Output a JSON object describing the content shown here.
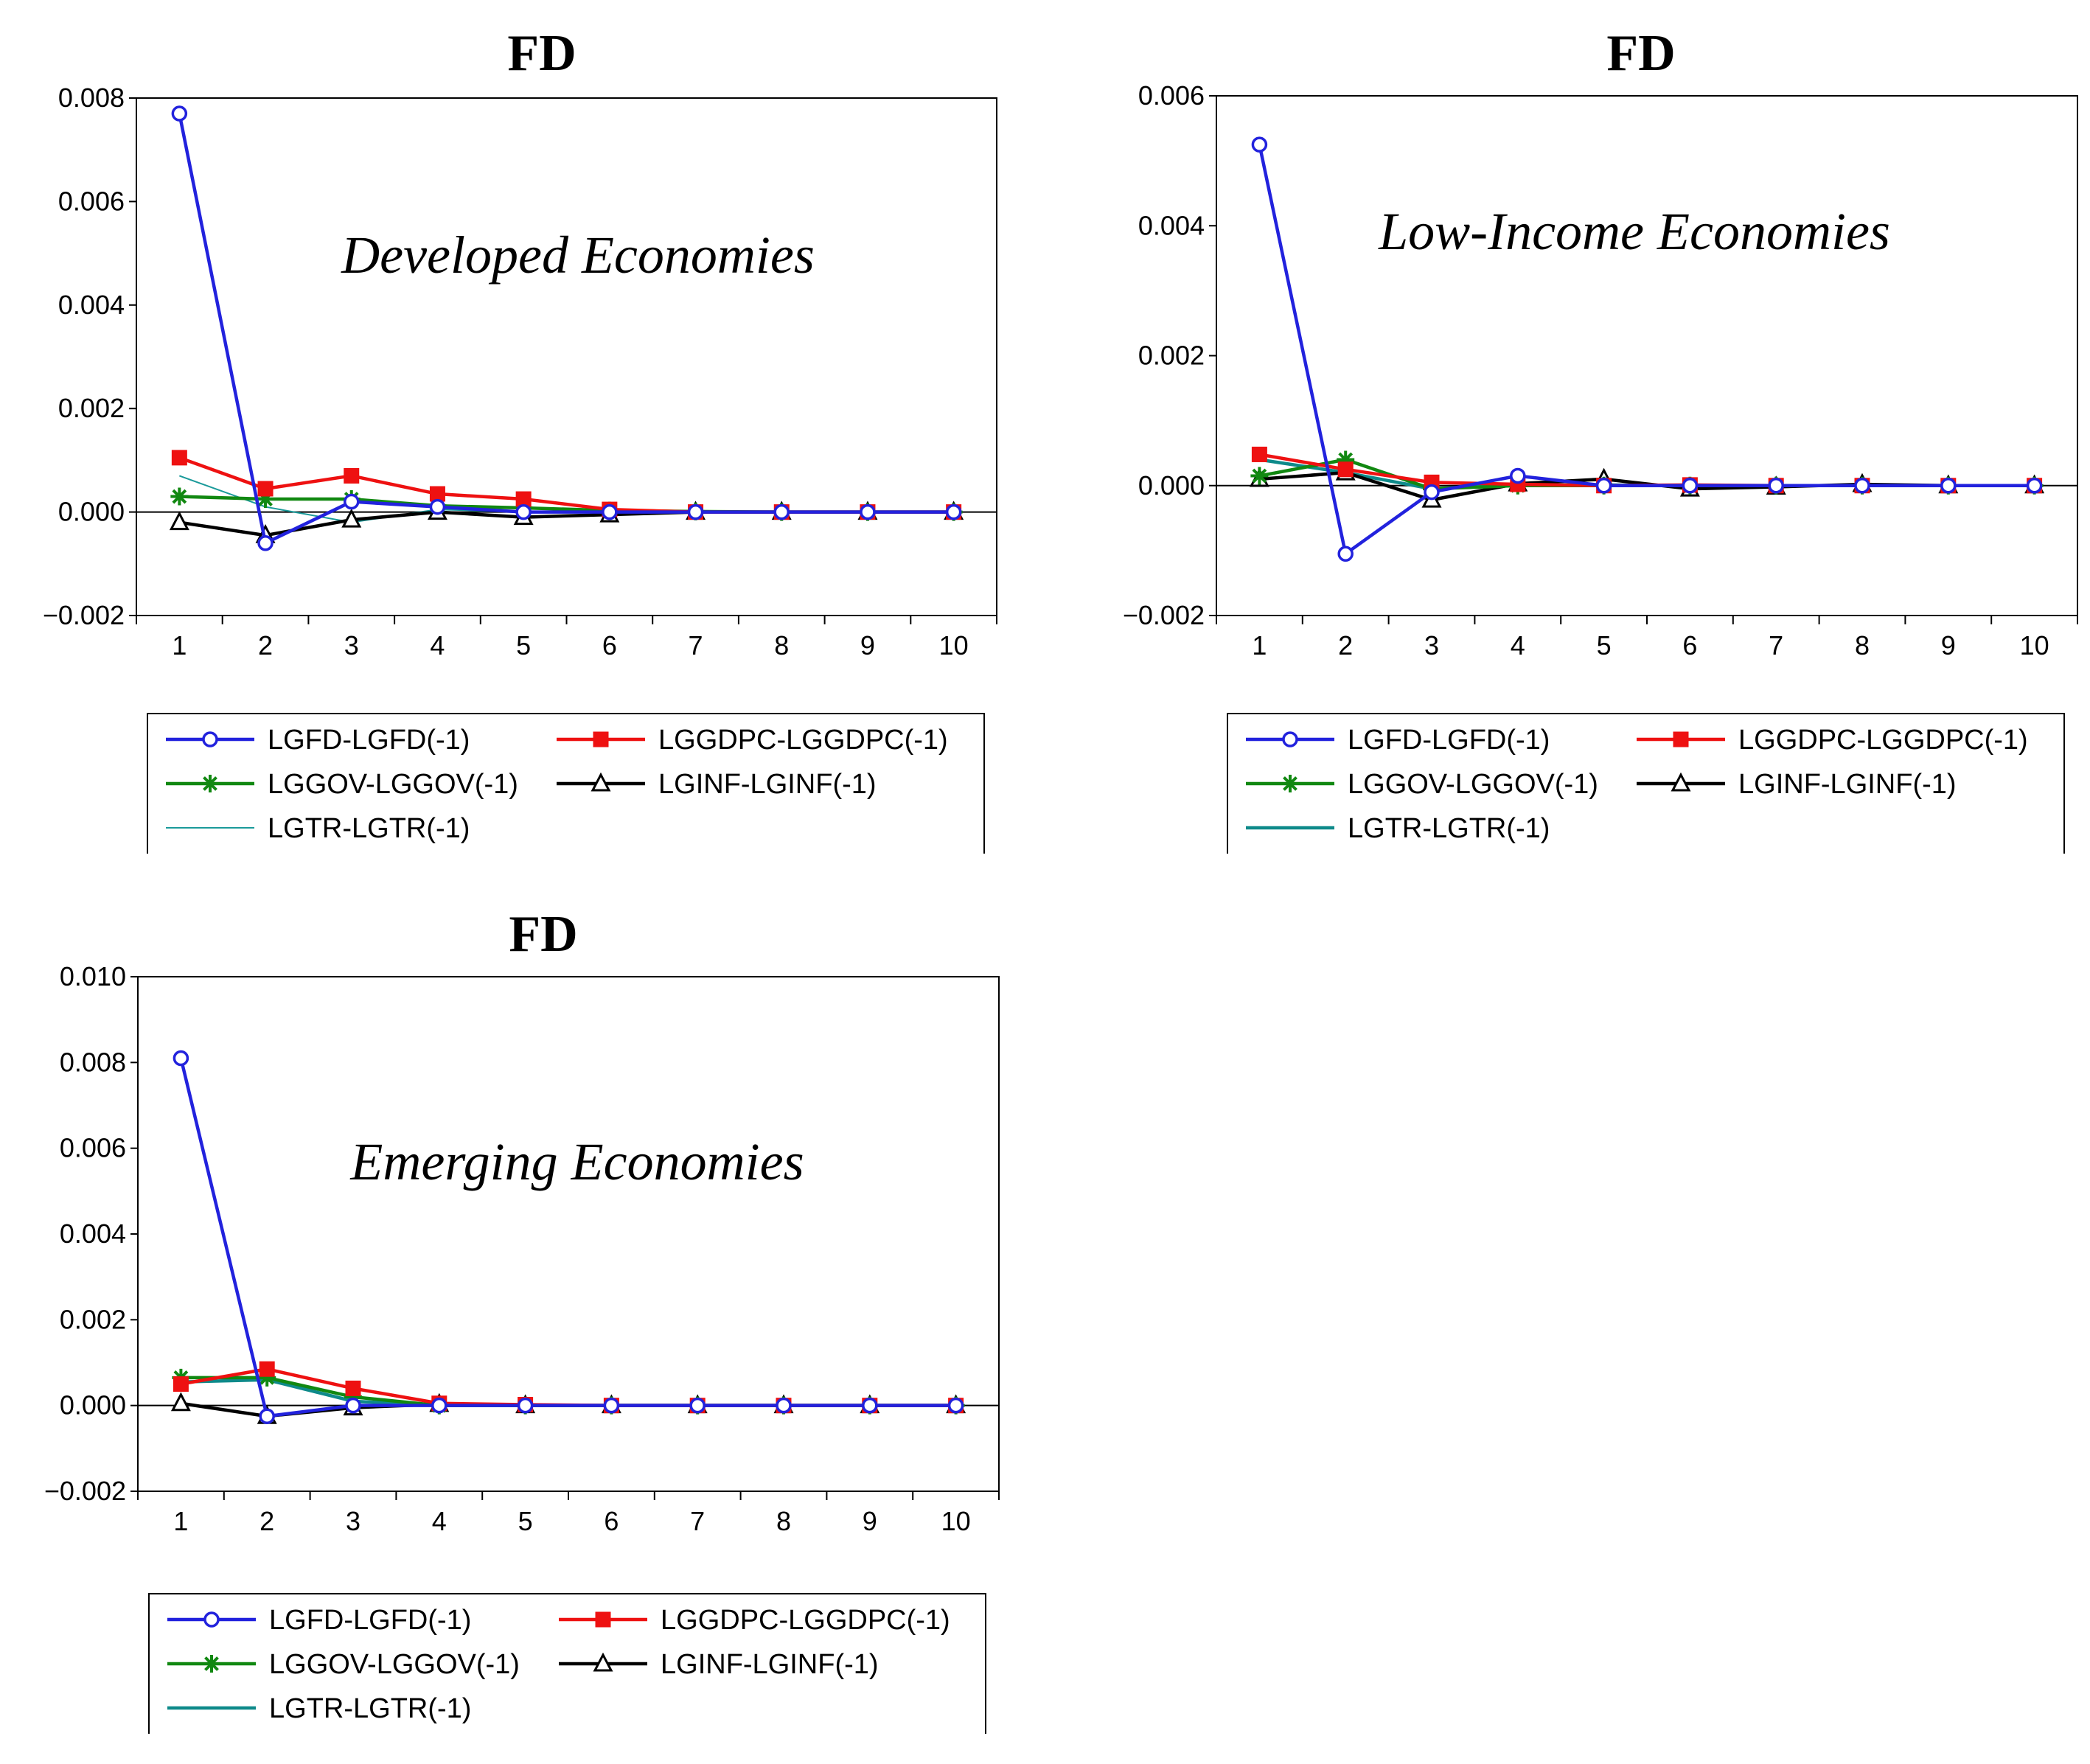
{
  "chart_data": [
    {
      "type": "line",
      "title": "FD",
      "annotation": "Developed Economies",
      "x": [
        1,
        2,
        3,
        4,
        5,
        6,
        7,
        8,
        9,
        10
      ],
      "ylim": [
        -0.002,
        0.008
      ],
      "yticks": [
        "0.008",
        "0.006",
        "0.004",
        "0.002",
        "0.000",
        "−0.002"
      ],
      "ytick_values": [
        0.008,
        0.006,
        0.004,
        0.002,
        0.0,
        -0.002
      ],
      "xticks": [
        "1",
        "2",
        "3",
        "4",
        "5",
        "6",
        "7",
        "8",
        "9",
        "10"
      ],
      "grid": false,
      "legend_position": "bottom",
      "series": [
        {
          "name": "LGFD-LGFD(-1)",
          "color": "#2222dd",
          "marker": "circle",
          "values": [
            0.0077,
            -0.0006,
            0.0002,
            0.0001,
            0.0,
            0.0,
            0.0,
            0.0,
            0.0,
            0.0
          ]
        },
        {
          "name": "LGGDPC-LGGDPC(-1)",
          "color": "#ee1111",
          "marker": "square",
          "values": [
            0.00105,
            0.00045,
            0.0007,
            0.00035,
            0.00025,
            5e-05,
            0.0,
            0.0,
            0.0,
            0.0
          ]
        },
        {
          "name": "LGGOV-LGGOV(-1)",
          "color": "#118811",
          "marker": "star",
          "values": [
            0.0003,
            0.00025,
            0.00025,
            0.00012,
            8e-05,
            3e-05,
            1e-05,
            0.0,
            0.0,
            0.0
          ]
        },
        {
          "name": "LGINF-LGINF(-1)",
          "color": "#000000",
          "marker": "triangle",
          "values": [
            -0.0002,
            -0.00045,
            -0.00015,
            0.0,
            -0.0001,
            -5e-05,
            0.0,
            0.0,
            0.0,
            0.0
          ]
        },
        {
          "name": "LGTR-LGTR(-1)",
          "color": "#1a9a9a",
          "marker": "none",
          "thin": true,
          "values": [
            0.0007,
            0.0001,
            -0.0002,
            5e-05,
            0.0,
            0.0,
            0.0,
            0.0,
            0.0,
            0.0
          ]
        }
      ]
    },
    {
      "type": "line",
      "title": "FD",
      "annotation": "Low-Income Economies",
      "x": [
        1,
        2,
        3,
        4,
        5,
        6,
        7,
        8,
        9,
        10
      ],
      "ylim": [
        -0.002,
        0.006
      ],
      "yticks": [
        "0.006",
        "0.004",
        "0.002",
        "0.000",
        "−0.002"
      ],
      "ytick_values": [
        0.006,
        0.004,
        0.002,
        0.0,
        -0.002
      ],
      "xticks": [
        "1",
        "2",
        "3",
        "4",
        "5",
        "6",
        "7",
        "8",
        "9",
        "10"
      ],
      "grid": false,
      "legend_position": "bottom",
      "series": [
        {
          "name": "LGFD-LGFD(-1)",
          "color": "#2222dd",
          "marker": "circle",
          "values": [
            0.00525,
            -0.00105,
            -0.0001,
            0.00015,
            0.0,
            0.0,
            0.0,
            0.0,
            0.0,
            0.0
          ]
        },
        {
          "name": "LGGDPC-LGGDPC(-1)",
          "color": "#ee1111",
          "marker": "square",
          "values": [
            0.00048,
            0.00025,
            5e-05,
            2e-05,
            0.0,
            1e-05,
            0.0,
            0.0,
            0.0,
            0.0
          ]
        },
        {
          "name": "LGGOV-LGGOV(-1)",
          "color": "#118811",
          "marker": "star",
          "values": [
            0.00015,
            0.0004,
            -5e-05,
            0.0,
            0.0,
            0.0,
            0.0,
            0.0,
            0.0,
            0.0
          ]
        },
        {
          "name": "LGINF-LGINF(-1)",
          "color": "#000000",
          "marker": "triangle",
          "values": [
            0.0001,
            0.0002,
            -0.00022,
            3e-05,
            0.0001,
            -5e-05,
            -2e-05,
            2e-05,
            0.0,
            0.0
          ]
        },
        {
          "name": "LGTR-LGTR(-1)",
          "color": "#0e8a8a",
          "marker": "none",
          "thin": false,
          "values": [
            0.0004,
            0.0002,
            -5e-05,
            2e-05,
            1e-05,
            0.0,
            0.0,
            0.0,
            0.0,
            0.0
          ]
        }
      ]
    },
    {
      "type": "line",
      "title": "FD",
      "annotation": "Emerging Economies",
      "x": [
        1,
        2,
        3,
        4,
        5,
        6,
        7,
        8,
        9,
        10
      ],
      "ylim": [
        -0.002,
        0.01
      ],
      "yticks": [
        "0.010",
        "0.008",
        "0.006",
        "0.004",
        "0.002",
        "0.000",
        "−0.002"
      ],
      "ytick_values": [
        0.01,
        0.008,
        0.006,
        0.004,
        0.002,
        0.0,
        -0.002
      ],
      "xticks": [
        "1",
        "2",
        "3",
        "4",
        "5",
        "6",
        "7",
        "8",
        "9",
        "10"
      ],
      "grid": false,
      "legend_position": "bottom",
      "series": [
        {
          "name": "LGFD-LGFD(-1)",
          "color": "#2222dd",
          "marker": "circle",
          "values": [
            0.0081,
            -0.00025,
            0.0,
            0.0,
            0.0,
            0.0,
            0.0,
            0.0,
            0.0,
            0.0
          ]
        },
        {
          "name": "LGGDPC-LGGDPC(-1)",
          "color": "#ee1111",
          "marker": "square",
          "values": [
            0.0005,
            0.00085,
            0.0004,
            5e-05,
            2e-05,
            0.0,
            0.0,
            0.0,
            0.0,
            0.0
          ]
        },
        {
          "name": "LGGOV-LGGOV(-1)",
          "color": "#118811",
          "marker": "star",
          "values": [
            0.00065,
            0.00065,
            0.0002,
            0.0,
            0.0,
            0.0,
            0.0,
            0.0,
            0.0,
            0.0
          ]
        },
        {
          "name": "LGINF-LGINF(-1)",
          "color": "#000000",
          "marker": "triangle",
          "values": [
            5e-05,
            -0.00025,
            -5e-05,
            3e-05,
            0.0,
            0.0,
            0.0,
            0.0,
            0.0,
            0.0
          ]
        },
        {
          "name": "LGTR-LGTR(-1)",
          "color": "#0e8a8a",
          "marker": "none",
          "thin": false,
          "values": [
            0.00055,
            0.0006,
            0.0001,
            0.0,
            0.0,
            0.0,
            0.0,
            0.0,
            0.0,
            0.0
          ]
        }
      ]
    }
  ]
}
